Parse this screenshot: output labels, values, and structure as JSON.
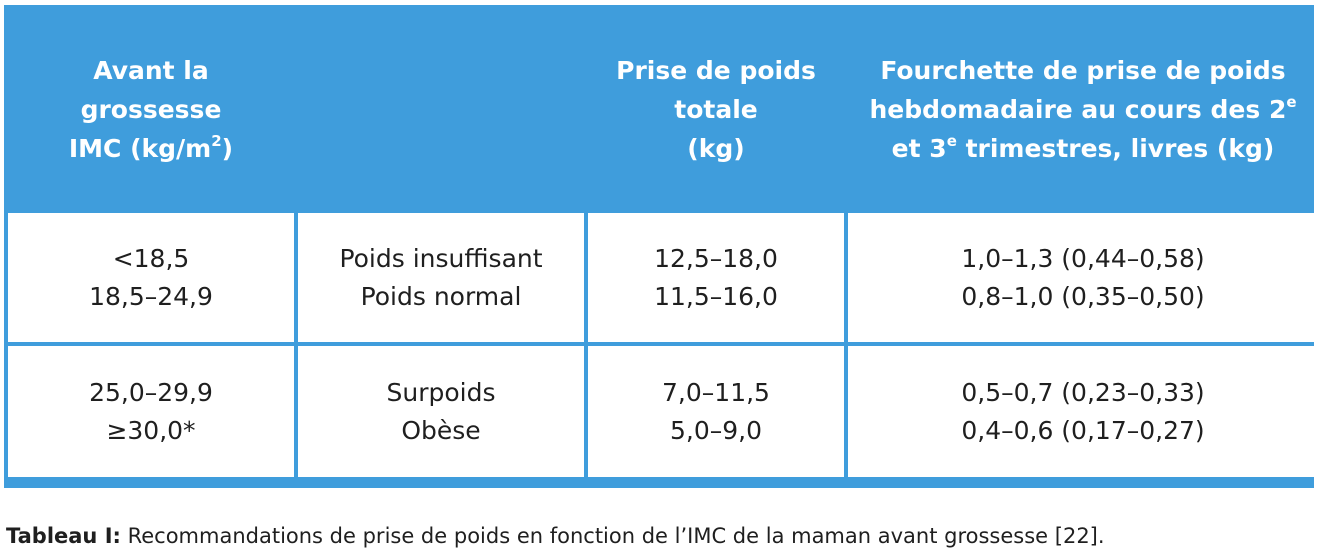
{
  "table": {
    "header": {
      "col1": {
        "line1": "Avant la",
        "line2": "grossesse",
        "line3": "IMC (kg/m",
        "sup": "2",
        "suffix": ")"
      },
      "col2": "",
      "col3": {
        "line1": "Prise de poids",
        "line2": "totale",
        "line3": "(kg)"
      },
      "col4": {
        "line1": "Fourchette de prise de poids",
        "line2": "hebdomadaire au cours des 2",
        "sup2": "e",
        "line3a": "et 3",
        "sup3": "e",
        "line3b": " trimestres, livres (kg)"
      }
    },
    "rows": [
      {
        "imc": [
          "<18,5",
          "18,5–24,9"
        ],
        "category": [
          "Poids insuffisant",
          "Poids normal"
        ],
        "total": [
          "12,5–18,0",
          "11,5–16,0"
        ],
        "weekly": [
          "1,0–1,3 (0,44–0,58)",
          "0,8–1,0 (0,35–0,50)"
        ]
      },
      {
        "imc": [
          "25,0–29,9",
          "≥30,0*"
        ],
        "category": [
          "Surpoids",
          "Obèse"
        ],
        "total": [
          "7,0–11,5",
          "5,0–9,0"
        ],
        "weekly": [
          "0,5–0,7 (0,23–0,33)",
          "0,4–0,6 (0,17–0,27)"
        ]
      }
    ]
  },
  "caption": {
    "label": "Tableau I:",
    "text": " Recommandations de prise de poids en fonction de l’IMC de la maman avant grossesse [22]."
  },
  "colors": {
    "header_bg": "#3f9ddc",
    "header_text": "#ffffff",
    "cell_bg": "#ffffff"
  }
}
